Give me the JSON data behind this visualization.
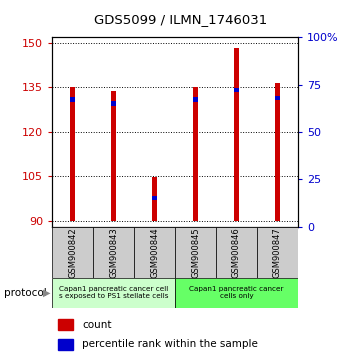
{
  "title": "GDS5099 / ILMN_1746031",
  "samples": [
    "GSM900842",
    "GSM900843",
    "GSM900844",
    "GSM900845",
    "GSM900846",
    "GSM900847"
  ],
  "counts": [
    135.2,
    133.8,
    104.8,
    135.3,
    148.5,
    136.5
  ],
  "percentiles": [
    67,
    65,
    15,
    67,
    72,
    68
  ],
  "ylim_left": [
    88,
    152
  ],
  "yticks_left": [
    90,
    105,
    120,
    135,
    150
  ],
  "yticks_right": [
    0,
    25,
    50,
    75,
    100
  ],
  "bar_color": "#cc0000",
  "percentile_color": "#0000cc",
  "bar_width": 0.12,
  "bar_bottom": 90,
  "protocol_group1": "Capan1 pancreatic cancer cell\ns exposed to PS1 stellate cells",
  "protocol_group2": "Capan1 pancreatic cancer\ncells only",
  "group1_color": "#ccffcc",
  "group2_color": "#66ff66",
  "legend_count_label": "count",
  "legend_percentile_label": "percentile rank within the sample",
  "protocol_label": "protocol",
  "tick_label_color_left": "#cc0000",
  "tick_label_color_right": "#0000cc",
  "xticklabel_bg": "#cccccc"
}
